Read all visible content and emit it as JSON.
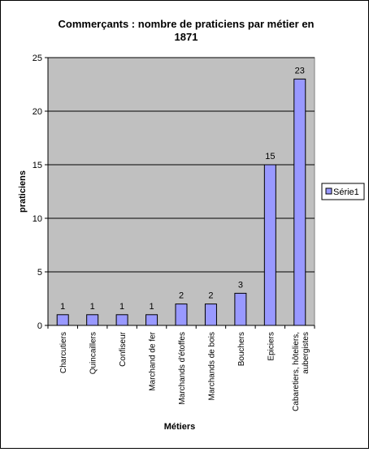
{
  "chart_data": {
    "type": "bar",
    "title": "Commerçants : nombre de praticiens par métier en 1871",
    "title_lines": [
      "Commerçants : nombre de praticiens par métier en",
      "1871"
    ],
    "xlabel": "Métiers",
    "ylabel": "praticiens",
    "ylim": [
      0,
      25
    ],
    "yticks": [
      0,
      5,
      10,
      15,
      20,
      25
    ],
    "grid": true,
    "legend_placement": "right",
    "categories": [
      "Charcutiers",
      "Quincaillers",
      "Confiseur",
      "Marchand de fer",
      "Marchands d'étoffes",
      "Marchands de bois",
      "Bouchers",
      "Epiciers",
      "Cabaretiers, hôteliers, aubergistes"
    ],
    "category_lines": [
      [
        "Charcutiers"
      ],
      [
        "Quincaillers"
      ],
      [
        "Confiseur"
      ],
      [
        "Marchand de fer"
      ],
      [
        "Marchands d'étoffes"
      ],
      [
        "Marchands de bois"
      ],
      [
        "Bouchers"
      ],
      [
        "Epiciers"
      ],
      [
        "Cabaretiers, hôteliers,",
        "aubergistes"
      ]
    ],
    "series": [
      {
        "name": "Série1",
        "values": [
          1,
          1,
          1,
          1,
          2,
          2,
          3,
          15,
          23
        ]
      }
    ],
    "colors": {
      "plot_background": "#c0c0c0",
      "bar_fill": "#9999ff",
      "bar_stroke": "#000000",
      "gridline": "#000000",
      "axis": "#000000"
    }
  }
}
